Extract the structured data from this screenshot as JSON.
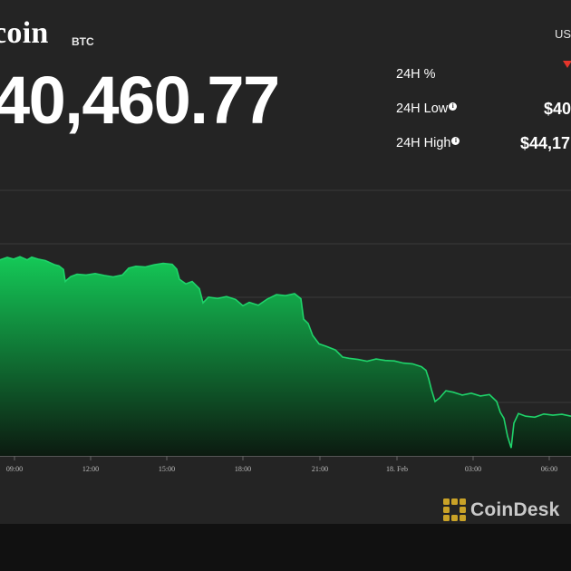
{
  "header": {
    "coin_name": "coin",
    "ticker": "BTC",
    "price": "40,460.77",
    "currency": "US"
  },
  "stats": [
    {
      "label": "24H %",
      "value": "",
      "info": false
    },
    {
      "label": "24H Low",
      "value": "$40",
      "info": true
    },
    {
      "label": "24H High",
      "value": "$44,17",
      "info": true
    }
  ],
  "colors": {
    "background": "#242424",
    "line": "#1fd36a",
    "fill_top": "#14c957",
    "fill_bottom": "#0c1a10",
    "change_down": "#e5352b"
  },
  "chart_data": {
    "type": "area",
    "title": "",
    "xlabel": "",
    "ylabel": "",
    "x_ticks": [
      "09:00",
      "12:00",
      "15:00",
      "18:00",
      "21:00",
      "18. Feb",
      "03:00",
      "06:00"
    ],
    "grid": true,
    "note": "y axis tick labels are not visible; values given as price index on an unlabeled scale",
    "ylim": [
      0,
      100
    ],
    "series": [
      {
        "points": [
          [
            0,
            80.5
          ],
          [
            8,
            81.5
          ],
          [
            15,
            80.8
          ],
          [
            22,
            81.8
          ],
          [
            30,
            80.5
          ],
          [
            35,
            81.6
          ],
          [
            42,
            80.8
          ],
          [
            50,
            80.2
          ],
          [
            60,
            78.5
          ],
          [
            65,
            78.0
          ],
          [
            70,
            76.5
          ],
          [
            72,
            71.5
          ],
          [
            78,
            73.5
          ],
          [
            85,
            74.5
          ],
          [
            95,
            74.2
          ],
          [
            105,
            74.8
          ],
          [
            115,
            74.0
          ],
          [
            125,
            73.4
          ],
          [
            135,
            74.2
          ],
          [
            142,
            77.0
          ],
          [
            150,
            77.8
          ],
          [
            160,
            77.5
          ],
          [
            170,
            78.4
          ],
          [
            180,
            79.0
          ],
          [
            190,
            78.6
          ],
          [
            195,
            76.6
          ],
          [
            198,
            72.4
          ],
          [
            205,
            70.5
          ],
          [
            212,
            71.5
          ],
          [
            220,
            68.5
          ],
          [
            224,
            62.6
          ],
          [
            230,
            65.0
          ],
          [
            240,
            64.4
          ],
          [
            250,
            65.2
          ],
          [
            260,
            64.0
          ],
          [
            268,
            61.4
          ],
          [
            275,
            62.8
          ],
          [
            285,
            61.6
          ],
          [
            295,
            64.2
          ],
          [
            305,
            66.0
          ],
          [
            315,
            65.6
          ],
          [
            325,
            66.4
          ],
          [
            332,
            64.3
          ],
          [
            335,
            55.8
          ],
          [
            340,
            54.0
          ],
          [
            345,
            49.0
          ],
          [
            352,
            45.5
          ],
          [
            360,
            44.5
          ],
          [
            370,
            43.0
          ],
          [
            378,
            40.0
          ],
          [
            385,
            39.5
          ],
          [
            395,
            39.0
          ],
          [
            405,
            38.3
          ],
          [
            415,
            39.2
          ],
          [
            425,
            38.6
          ],
          [
            435,
            38.4
          ],
          [
            445,
            37.5
          ],
          [
            455,
            37.2
          ],
          [
            465,
            36.0
          ],
          [
            470,
            34.5
          ],
          [
            473,
            31.0
          ],
          [
            476,
            26.5
          ],
          [
            480,
            21.5
          ],
          [
            485,
            23.0
          ],
          [
            492,
            26.0
          ],
          [
            500,
            25.4
          ],
          [
            510,
            24.2
          ],
          [
            520,
            25.0
          ],
          [
            530,
            23.8
          ],
          [
            540,
            24.4
          ],
          [
            548,
            21.5
          ],
          [
            552,
            17.0
          ],
          [
            556,
            14.5
          ],
          [
            560,
            7.0
          ],
          [
            564,
            2.2
          ],
          [
            567,
            12.5
          ],
          [
            572,
            16.5
          ],
          [
            580,
            15.4
          ],
          [
            590,
            15.0
          ],
          [
            600,
            16.3
          ],
          [
            610,
            15.8
          ],
          [
            620,
            16.2
          ],
          [
            630,
            15.4
          ]
        ]
      }
    ]
  }
}
